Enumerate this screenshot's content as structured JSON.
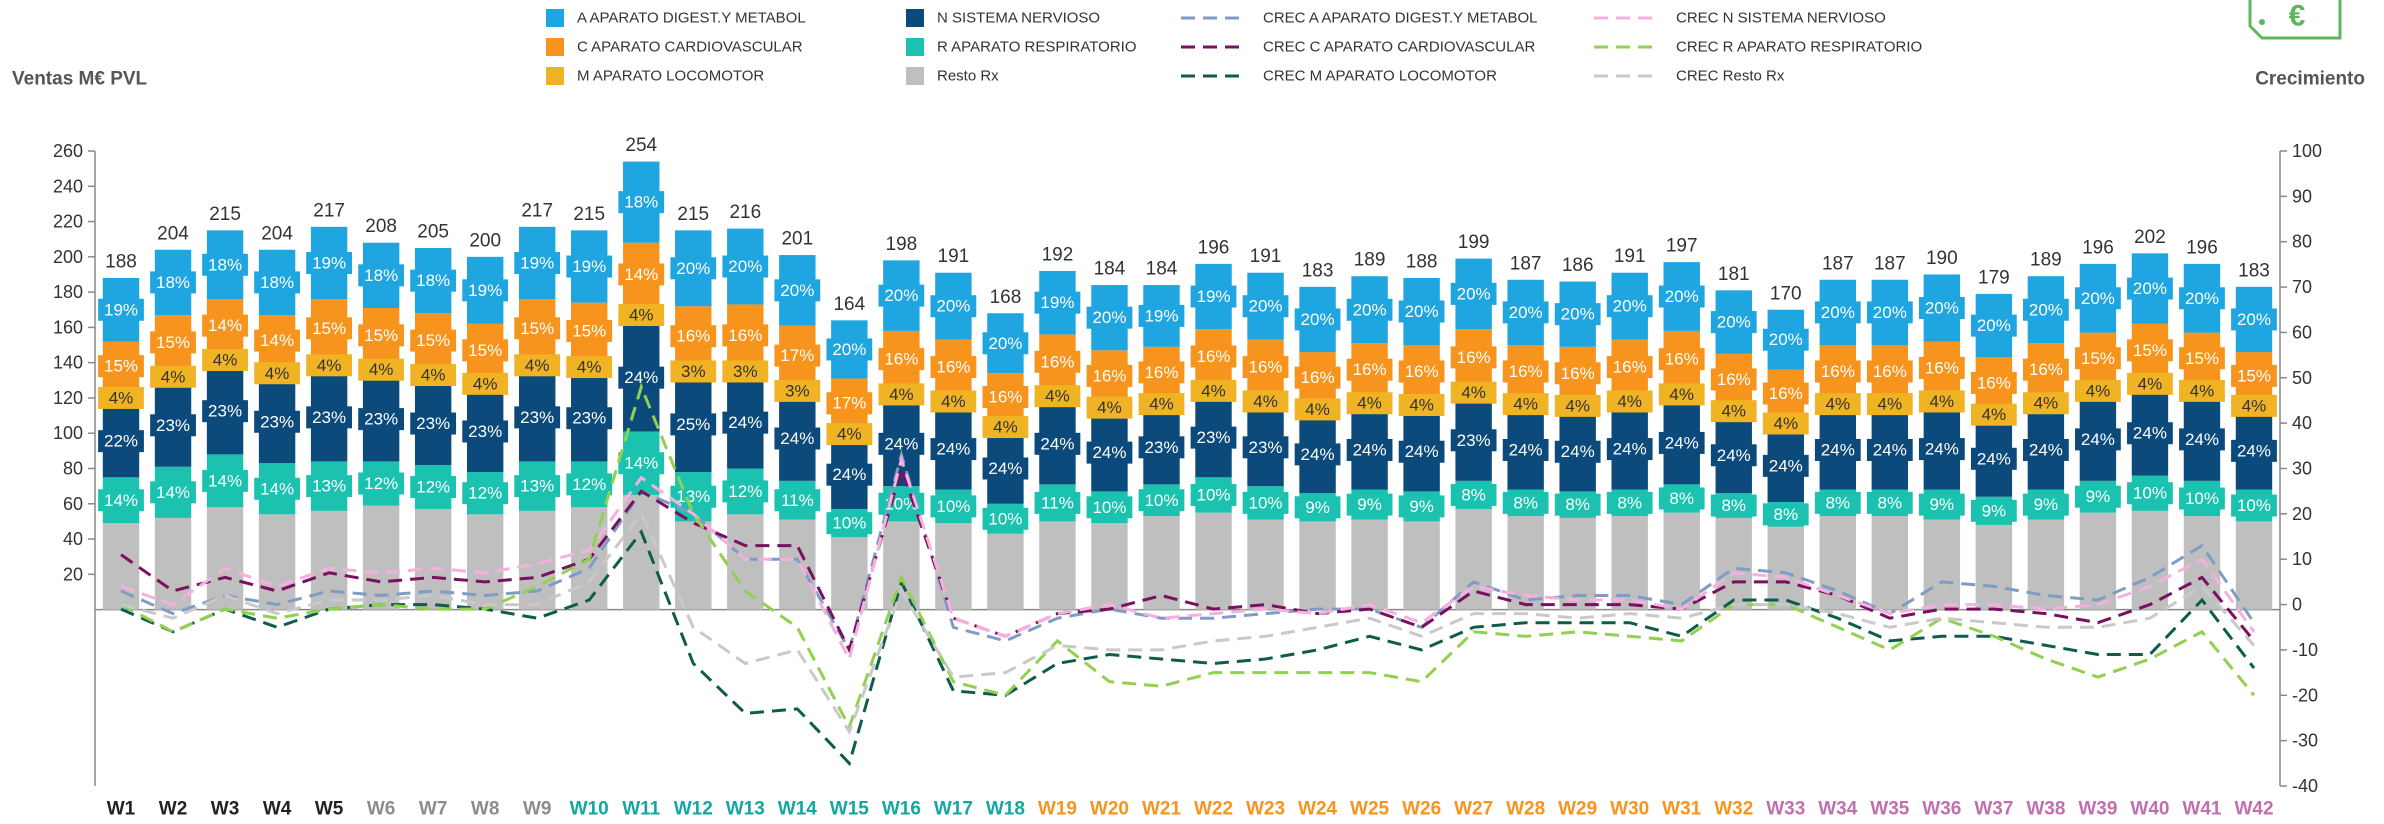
{
  "chart_data": {
    "type": "stacked_bar_line",
    "icon": "€",
    "ylabel": "Ventas M€ PVL",
    "y2label": "Crecimiento",
    "categories": [
      "W1",
      "W2",
      "W3",
      "W4",
      "W5",
      "W6",
      "W7",
      "W8",
      "W9",
      "W10",
      "W11",
      "W12",
      "W13",
      "W14",
      "W15",
      "W16",
      "W17",
      "W18",
      "W19",
      "W20",
      "W21",
      "W22",
      "W23",
      "W24",
      "W25",
      "W26",
      "W27",
      "W28",
      "W29",
      "W30",
      "W31",
      "W32",
      "W33",
      "W34",
      "W35",
      "W36",
      "W37",
      "W38",
      "W39",
      "W40",
      "W41",
      "W42"
    ],
    "category_colors": [
      "#222222",
      "#222222",
      "#222222",
      "#222222",
      "#222222",
      "#8c8c8c",
      "#8c8c8c",
      "#8c8c8c",
      "#8c8c8c",
      "#14a6a0",
      "#14a6a0",
      "#14a6a0",
      "#14a6a0",
      "#14a6a0",
      "#14a6a0",
      "#14a6a0",
      "#14a6a0",
      "#14a6a0",
      "#f7941d",
      "#f7941d",
      "#f7941d",
      "#f7941d",
      "#f7941d",
      "#f7941d",
      "#f7941d",
      "#f7941d",
      "#f7941d",
      "#f7941d",
      "#f7941d",
      "#f7941d",
      "#f7941d",
      "#f7941d",
      "#c070b0",
      "#c070b0",
      "#c070b0",
      "#c070b0",
      "#c070b0",
      "#c070b0",
      "#c070b0",
      "#c070b0",
      "#c070b0",
      "#c070b0"
    ],
    "totals": [
      188,
      204,
      215,
      204,
      217,
      208,
      205,
      200,
      217,
      215,
      254,
      215,
      216,
      201,
      164,
      198,
      191,
      168,
      192,
      184,
      184,
      196,
      191,
      183,
      189,
      188,
      199,
      187,
      186,
      191,
      197,
      181,
      170,
      187,
      187,
      190,
      179,
      189,
      196,
      202,
      196,
      183
    ],
    "ylim": [
      -100,
      260
    ],
    "yticks": [
      20,
      40,
      60,
      80,
      100,
      120,
      140,
      160,
      180,
      200,
      220,
      240,
      260
    ],
    "y2lim": [
      -40,
      100
    ],
    "y2ticks": [
      -40,
      -30,
      -20,
      -10,
      0,
      10,
      20,
      30,
      40,
      50,
      60,
      70,
      80,
      90,
      100
    ],
    "series": [
      {
        "name": "A APARATO DIGEST.Y METABOL",
        "color": "#1fa5e0",
        "label_color": "#ffffff",
        "values": [
          36,
          37,
          39,
          37,
          41,
          37,
          37,
          38,
          41,
          41,
          46,
          43,
          43,
          40,
          33,
          40,
          38,
          34,
          36,
          37,
          35,
          37,
          38,
          37,
          38,
          38,
          40,
          37,
          37,
          38,
          39,
          36,
          34,
          37,
          37,
          38,
          36,
          38,
          39,
          40,
          39,
          37
        ],
        "share_labels": [
          "19%",
          "18%",
          "18%",
          "18%",
          "19%",
          "18%",
          "18%",
          "19%",
          "19%",
          "19%",
          "18%",
          "20%",
          "20%",
          "20%",
          "20%",
          "20%",
          "20%",
          "20%",
          "19%",
          "20%",
          "19%",
          "19%",
          "20%",
          "20%",
          "20%",
          "20%",
          "20%",
          "20%",
          "20%",
          "20%",
          "20%",
          "20%",
          "20%",
          "20%",
          "20%",
          "20%",
          "20%",
          "20%",
          "20%",
          "20%",
          "20%",
          "20%"
        ]
      },
      {
        "name": "C APARATO CARDIOVASCULAR",
        "color": "#f7941d",
        "label_color": "#ffffff",
        "values": [
          28,
          31,
          30,
          29,
          33,
          31,
          31,
          30,
          33,
          32,
          36,
          34,
          35,
          34,
          28,
          32,
          31,
          27,
          31,
          29,
          29,
          31,
          31,
          29,
          30,
          30,
          32,
          30,
          30,
          31,
          32,
          29,
          27,
          30,
          30,
          30,
          29,
          30,
          29,
          30,
          29,
          27
        ],
        "share_labels": [
          "15%",
          "15%",
          "14%",
          "14%",
          "15%",
          "15%",
          "15%",
          "15%",
          "15%",
          "15%",
          "14%",
          "16%",
          "16%",
          "17%",
          "17%",
          "16%",
          "16%",
          "16%",
          "16%",
          "16%",
          "16%",
          "16%",
          "16%",
          "16%",
          "16%",
          "16%",
          "16%",
          "16%",
          "16%",
          "16%",
          "16%",
          "16%",
          "16%",
          "16%",
          "16%",
          "16%",
          "16%",
          "16%",
          "15%",
          "15%",
          "15%",
          "15%"
        ]
      },
      {
        "name": "M APARATO LOCOMOTOR",
        "color": "#f0b323",
        "label_color": "#333333",
        "values": [
          8,
          8,
          9,
          8,
          9,
          8,
          8,
          8,
          9,
          9,
          10,
          6,
          6,
          6,
          7,
          8,
          8,
          7,
          8,
          7,
          7,
          8,
          8,
          7,
          8,
          8,
          8,
          7,
          7,
          8,
          8,
          7,
          7,
          7,
          7,
          8,
          7,
          8,
          8,
          8,
          8,
          7
        ],
        "share_labels": [
          "4%",
          "4%",
          "4%",
          "4%",
          "4%",
          "4%",
          "4%",
          "4%",
          "4%",
          "4%",
          "4%",
          "3%",
          "3%",
          "3%",
          "4%",
          "4%",
          "4%",
          "4%",
          "4%",
          "4%",
          "4%",
          "4%",
          "4%",
          "4%",
          "4%",
          "4%",
          "4%",
          "4%",
          "4%",
          "4%",
          "4%",
          "4%",
          "4%",
          "4%",
          "4%",
          "4%",
          "4%",
          "4%",
          "4%",
          "4%",
          "4%",
          "4%"
        ]
      },
      {
        "name": "N SISTEMA NERVIOSO",
        "color": "#0b4a7a",
        "label_color": "#ffffff",
        "values": [
          41,
          47,
          49,
          47,
          50,
          48,
          47,
          46,
          50,
          49,
          61,
          54,
          52,
          48,
          39,
          48,
          46,
          40,
          46,
          44,
          42,
          45,
          44,
          44,
          45,
          45,
          46,
          45,
          45,
          46,
          47,
          43,
          41,
          45,
          45,
          46,
          43,
          45,
          47,
          48,
          47,
          44
        ],
        "share_labels": [
          "22%",
          "23%",
          "23%",
          "23%",
          "23%",
          "23%",
          "23%",
          "23%",
          "23%",
          "23%",
          "24%",
          "25%",
          "24%",
          "24%",
          "24%",
          "24%",
          "24%",
          "24%",
          "24%",
          "24%",
          "23%",
          "23%",
          "23%",
          "24%",
          "24%",
          "24%",
          "23%",
          "24%",
          "24%",
          "24%",
          "24%",
          "24%",
          "24%",
          "24%",
          "24%",
          "24%",
          "24%",
          "24%",
          "24%",
          "24%",
          "24%",
          "24%"
        ]
      },
      {
        "name": "R APARATO RESPIRATORIO",
        "color": "#1cc2b0",
        "label_color": "#ffffff",
        "values": [
          26,
          29,
          30,
          29,
          28,
          25,
          25,
          24,
          28,
          26,
          36,
          28,
          26,
          22,
          16,
          20,
          19,
          17,
          21,
          18,
          18,
          20,
          19,
          16,
          17,
          17,
          16,
          15,
          15,
          15,
          16,
          14,
          14,
          15,
          15,
          17,
          16,
          17,
          18,
          20,
          20,
          18
        ],
        "share_labels": [
          "14%",
          "14%",
          "14%",
          "14%",
          "13%",
          "12%",
          "12%",
          "12%",
          "13%",
          "12%",
          "14%",
          "13%",
          "12%",
          "11%",
          "10%",
          "10%",
          "10%",
          "10%",
          "11%",
          "10%",
          "10%",
          "10%",
          "10%",
          "9%",
          "9%",
          "9%",
          "8%",
          "8%",
          "8%",
          "8%",
          "8%",
          "8%",
          "8%",
          "8%",
          "8%",
          "9%",
          "9%",
          "9%",
          "9%",
          "10%",
          "10%",
          "10%"
        ]
      },
      {
        "name": "Resto Rx",
        "color": "#bfbfbf",
        "values": [
          49,
          52,
          58,
          54,
          56,
          59,
          57,
          54,
          56,
          58,
          65,
          50,
          54,
          51,
          41,
          50,
          49,
          43,
          50,
          49,
          53,
          55,
          51,
          50,
          51,
          50,
          57,
          53,
          52,
          53,
          55,
          52,
          47,
          53,
          53,
          51,
          48,
          51,
          55,
          56,
          53,
          50
        ]
      }
    ],
    "growth_series": [
      {
        "name": "CREC A APARATO DIGEST.Y METABOL",
        "color": "#7f9cc4",
        "axis": "y2",
        "values": [
          3,
          -2,
          2,
          0,
          3,
          2,
          3,
          2,
          3,
          8,
          25,
          20,
          10,
          10,
          -10,
          33,
          -5,
          -8,
          -3,
          -1,
          -3,
          -3,
          -2,
          -1,
          -1,
          -5,
          5,
          1,
          2,
          2,
          0,
          8,
          7,
          3,
          -2,
          5,
          4,
          2,
          1,
          6,
          13,
          -4
        ]
      },
      {
        "name": "CREC C APARATO CARDIOVASCULAR",
        "color": "#7b1060",
        "axis": "y2",
        "values": [
          11,
          3,
          6,
          3,
          7,
          5,
          6,
          5,
          6,
          10,
          25,
          18,
          13,
          13,
          -10,
          30,
          -3,
          -7,
          -2,
          -1,
          2,
          -1,
          0,
          -2,
          -1,
          -5,
          3,
          0,
          0,
          0,
          -1,
          5,
          5,
          2,
          -3,
          -1,
          -1,
          -2,
          -4,
          0,
          6,
          -8
        ]
      },
      {
        "name": "CREC M APARATO LOCOMOTOR",
        "color": "#0d5c4c",
        "axis": "y2",
        "values": [
          -1,
          -6,
          -1,
          -5,
          -1,
          0,
          0,
          -1,
          -3,
          1,
          16,
          -13,
          -24,
          -23,
          -35,
          5,
          -19,
          -20,
          -13,
          -11,
          -12,
          -13,
          -12,
          -10,
          -7,
          -10,
          -5,
          -4,
          -4,
          -4,
          -7,
          1,
          1,
          -3,
          -8,
          -7,
          -7,
          -9,
          -11,
          -11,
          1,
          -14
        ]
      },
      {
        "name": "CREC N SISTEMA NERVIOSO",
        "color": "#f6b0e0",
        "axis": "y2",
        "values": [
          4,
          0,
          8,
          4,
          8,
          7,
          8,
          7,
          9,
          12,
          28,
          20,
          10,
          10,
          -12,
          32,
          -3,
          -7,
          -2,
          0,
          -3,
          -2,
          -1,
          -2,
          0,
          -4,
          4,
          2,
          1,
          1,
          -1,
          7,
          6,
          2,
          -2,
          0,
          0,
          -1,
          0,
          4,
          10,
          -6
        ]
      },
      {
        "name": "CREC R APARATO RESPIRATORIO",
        "color": "#92d050",
        "axis": "y2",
        "values": [
          0,
          -6,
          -1,
          -3,
          -1,
          0,
          -1,
          -1,
          4,
          10,
          48,
          20,
          3,
          -5,
          -27,
          6,
          -17,
          -20,
          -8,
          -17,
          -18,
          -15,
          -15,
          -15,
          -15,
          -17,
          -6,
          -7,
          -6,
          -7,
          -8,
          0,
          0,
          -5,
          -10,
          -3,
          -7,
          -12,
          -16,
          -12,
          -6,
          -20
        ]
      },
      {
        "name": "CREC Resto Rx",
        "color": "#c9c9c9",
        "axis": "y2",
        "values": [
          0,
          -3,
          2,
          -2,
          1,
          1,
          2,
          0,
          0,
          5,
          20,
          -5,
          -13,
          -10,
          -28,
          3,
          -16,
          -15,
          -9,
          -10,
          -10,
          -8,
          -7,
          -5,
          -3,
          -7,
          -2,
          -2,
          -3,
          -2,
          -3,
          0,
          0,
          -2,
          -5,
          -3,
          -4,
          -5,
          -5,
          -3,
          4,
          -9
        ]
      }
    ]
  }
}
